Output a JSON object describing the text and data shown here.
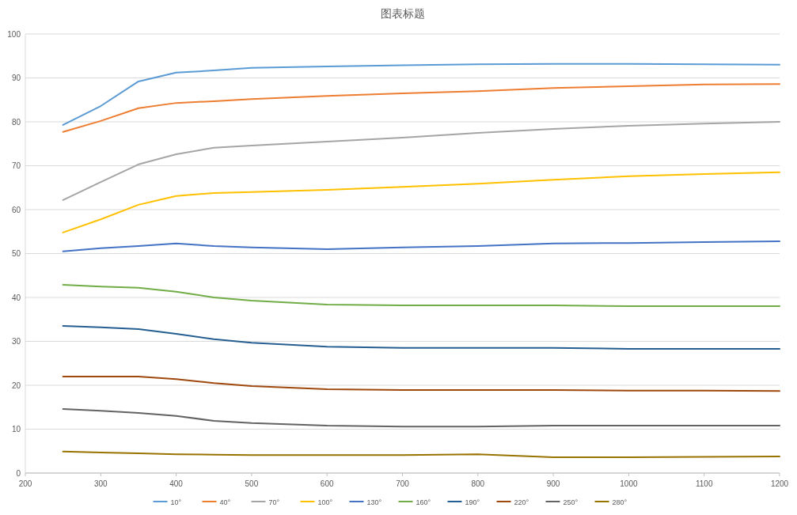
{
  "chart_data": {
    "type": "line",
    "title": "图表标题",
    "x": [
      250,
      300,
      350,
      400,
      450,
      500,
      600,
      700,
      800,
      900,
      1000,
      1100,
      1200
    ],
    "series": [
      {
        "name": "10°",
        "color": "#5b9bd5",
        "values": [
          79.3,
          83.6,
          89.2,
          91.2,
          91.7,
          92.3,
          92.6,
          92.9,
          93.1,
          93.2,
          93.2,
          93.1,
          93.0
        ]
      },
      {
        "name": "40°",
        "color": "#ed7d31",
        "values": [
          77.7,
          80.2,
          83.1,
          84.3,
          84.7,
          85.2,
          85.9,
          86.5,
          87.0,
          87.7,
          88.1,
          88.5,
          88.6
        ]
      },
      {
        "name": "70°",
        "color": "#a5a5a5",
        "values": [
          62.2,
          66.3,
          70.3,
          72.6,
          74.1,
          74.6,
          75.5,
          76.4,
          77.5,
          78.4,
          79.1,
          79.6,
          80.0
        ]
      },
      {
        "name": "100°",
        "color": "#ffc000",
        "values": [
          54.8,
          57.8,
          61.1,
          63.1,
          63.8,
          64.0,
          64.5,
          65.2,
          65.9,
          66.8,
          67.6,
          68.1,
          68.5
        ]
      },
      {
        "name": "130°",
        "color": "#4472c4",
        "values": [
          50.5,
          51.2,
          51.7,
          52.3,
          51.7,
          51.4,
          51.0,
          51.4,
          51.7,
          52.3,
          52.4,
          52.6,
          52.8
        ]
      },
      {
        "name": "160°",
        "color": "#70ad47",
        "values": [
          42.9,
          42.5,
          42.2,
          41.3,
          40.0,
          39.3,
          38.4,
          38.2,
          38.2,
          38.2,
          38.0,
          38.0,
          38.0
        ]
      },
      {
        "name": "190°",
        "color": "#255e91",
        "values": [
          33.5,
          33.2,
          32.8,
          31.7,
          30.5,
          29.7,
          28.8,
          28.5,
          28.5,
          28.5,
          28.3,
          28.3,
          28.3
        ]
      },
      {
        "name": "220°",
        "color": "#9e480e",
        "values": [
          22.0,
          22.0,
          22.0,
          21.4,
          20.5,
          19.8,
          19.1,
          18.9,
          18.9,
          18.9,
          18.8,
          18.8,
          18.7
        ]
      },
      {
        "name": "250°",
        "color": "#636363",
        "values": [
          14.6,
          14.2,
          13.7,
          13.0,
          11.9,
          11.4,
          10.8,
          10.6,
          10.6,
          10.8,
          10.8,
          10.8,
          10.8
        ]
      },
      {
        "name": "280°",
        "color": "#997300",
        "values": [
          4.9,
          4.7,
          4.5,
          4.3,
          4.2,
          4.1,
          4.1,
          4.1,
          4.3,
          3.6,
          3.6,
          3.7,
          3.8
        ]
      }
    ],
    "xlim": [
      200,
      1200
    ],
    "ylim": [
      0,
      100
    ],
    "xticks": [
      200,
      300,
      400,
      500,
      600,
      700,
      800,
      900,
      1000,
      1100,
      1200
    ],
    "yticks": [
      0,
      10,
      20,
      30,
      40,
      50,
      60,
      70,
      80,
      90,
      100
    ],
    "grid": "y",
    "legend": "bottom"
  }
}
